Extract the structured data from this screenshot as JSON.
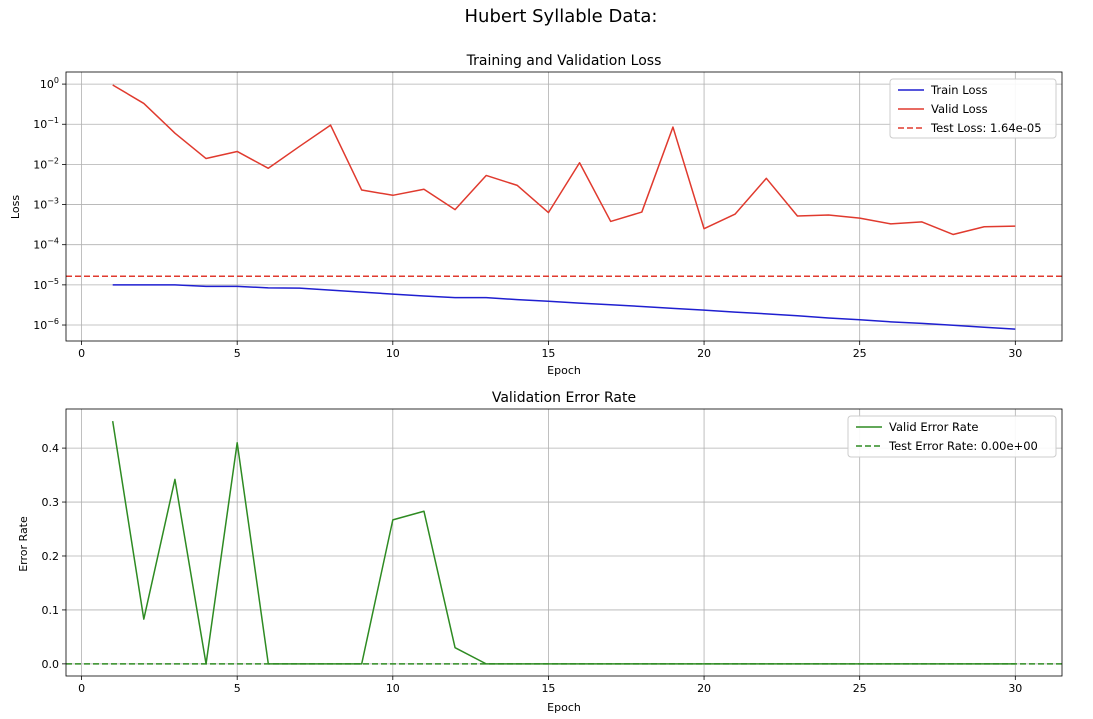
{
  "figure": {
    "suptitle": "Hubert Syllable Data:"
  },
  "colors": {
    "train": "#1f1fd0",
    "valid": "#e03a2e",
    "test_loss": "#e03a2e",
    "error": "#2e8b22"
  },
  "chart_data": [
    {
      "type": "line",
      "title": "Training and Validation Loss",
      "xlabel": "Epoch",
      "ylabel": "Loss",
      "yscale": "log",
      "xlim": [
        -0.5,
        31.5
      ],
      "ylim": [
        4e-07,
        2
      ],
      "xticks": [
        0,
        5,
        10,
        15,
        20,
        25,
        30
      ],
      "xtick_labels": [
        "0",
        "5",
        "10",
        "15",
        "20",
        "25",
        "30"
      ],
      "yticks": [
        1e-06,
        1e-05,
        0.0001,
        0.001,
        0.01,
        0.1,
        1
      ],
      "ytick_labels": [
        {
          "base": "10",
          "exp": "−6"
        },
        {
          "base": "10",
          "exp": "−5"
        },
        {
          "base": "10",
          "exp": "−4"
        },
        {
          "base": "10",
          "exp": "−3"
        },
        {
          "base": "10",
          "exp": "−2"
        },
        {
          "base": "10",
          "exp": "−1"
        },
        {
          "base": "10",
          "exp": "0"
        }
      ],
      "grid": true,
      "legend_position": "top-right",
      "x": [
        1,
        2,
        3,
        4,
        5,
        6,
        7,
        8,
        9,
        10,
        11,
        12,
        13,
        14,
        15,
        16,
        17,
        18,
        19,
        20,
        21,
        22,
        23,
        24,
        25,
        26,
        27,
        28,
        29,
        30
      ],
      "series": [
        {
          "name": "Train Loss",
          "color_key": "train",
          "style": "solid",
          "values": [
            1e-05,
            1e-05,
            1e-05,
            9.2e-06,
            9.2e-06,
            8.4e-06,
            8.3e-06,
            7.4e-06,
            6.6e-06,
            5.9e-06,
            5.3e-06,
            4.8e-06,
            4.8e-06,
            4.3e-06,
            3.9e-06,
            3.5e-06,
            3.2e-06,
            2.9e-06,
            2.6e-06,
            2.35e-06,
            2.1e-06,
            1.9e-06,
            1.7e-06,
            1.5e-06,
            1.35e-06,
            1.2e-06,
            1.1e-06,
            9.9e-07,
            8.8e-07,
            7.9e-07
          ]
        },
        {
          "name": "Valid Loss",
          "color_key": "valid",
          "style": "solid",
          "values": [
            0.95,
            0.33,
            0.06,
            0.014,
            0.021,
            0.008,
            0.028,
            0.095,
            0.0023,
            0.0017,
            0.0024,
            0.00075,
            0.0053,
            0.003,
            0.00063,
            0.011,
            0.00038,
            0.00065,
            0.085,
            0.00025,
            0.00058,
            0.0045,
            0.00052,
            0.00055,
            0.00046,
            0.00033,
            0.00037,
            0.00018,
            0.00028,
            0.00029
          ]
        }
      ],
      "hlines": [
        {
          "name": "Test Loss: 1.64e-05",
          "color_key": "test_loss",
          "style": "dashed",
          "value": 1.64e-05
        }
      ]
    },
    {
      "type": "line",
      "title": "Validation Error Rate",
      "xlabel": "Epoch",
      "ylabel": "Error Rate",
      "yscale": "linear",
      "xlim": [
        -0.5,
        31.5
      ],
      "ylim": [
        -0.0225,
        0.4725
      ],
      "xticks": [
        0,
        5,
        10,
        15,
        20,
        25,
        30
      ],
      "xtick_labels": [
        "0",
        "5",
        "10",
        "15",
        "20",
        "25",
        "30"
      ],
      "yticks": [
        0.0,
        0.1,
        0.2,
        0.3,
        0.4
      ],
      "ytick_labels": [
        "0.0",
        "0.1",
        "0.2",
        "0.3",
        "0.4"
      ],
      "grid": true,
      "legend_position": "top-right",
      "x": [
        1,
        2,
        3,
        4,
        5,
        6,
        7,
        8,
        9,
        10,
        11,
        12,
        13,
        14,
        15,
        16,
        17,
        18,
        19,
        20,
        21,
        22,
        23,
        24,
        25,
        26,
        27,
        28,
        29,
        30
      ],
      "series": [
        {
          "name": "Valid Error Rate",
          "color_key": "error",
          "style": "solid",
          "values": [
            0.45,
            0.083,
            0.342,
            0.0,
            0.41,
            0.0,
            0.0,
            0.0,
            0.0,
            0.267,
            0.283,
            0.03,
            0.0,
            0.0,
            0.0,
            0.0,
            0.0,
            0.0,
            0.0,
            0.0,
            0.0,
            0.0,
            0.0,
            0.0,
            0.0,
            0.0,
            0.0,
            0.0,
            0.0,
            0.0
          ]
        }
      ],
      "hlines": [
        {
          "name": "Test Error Rate: 0.00e+00",
          "color_key": "error",
          "style": "dashed",
          "value": 0.0
        }
      ]
    }
  ]
}
